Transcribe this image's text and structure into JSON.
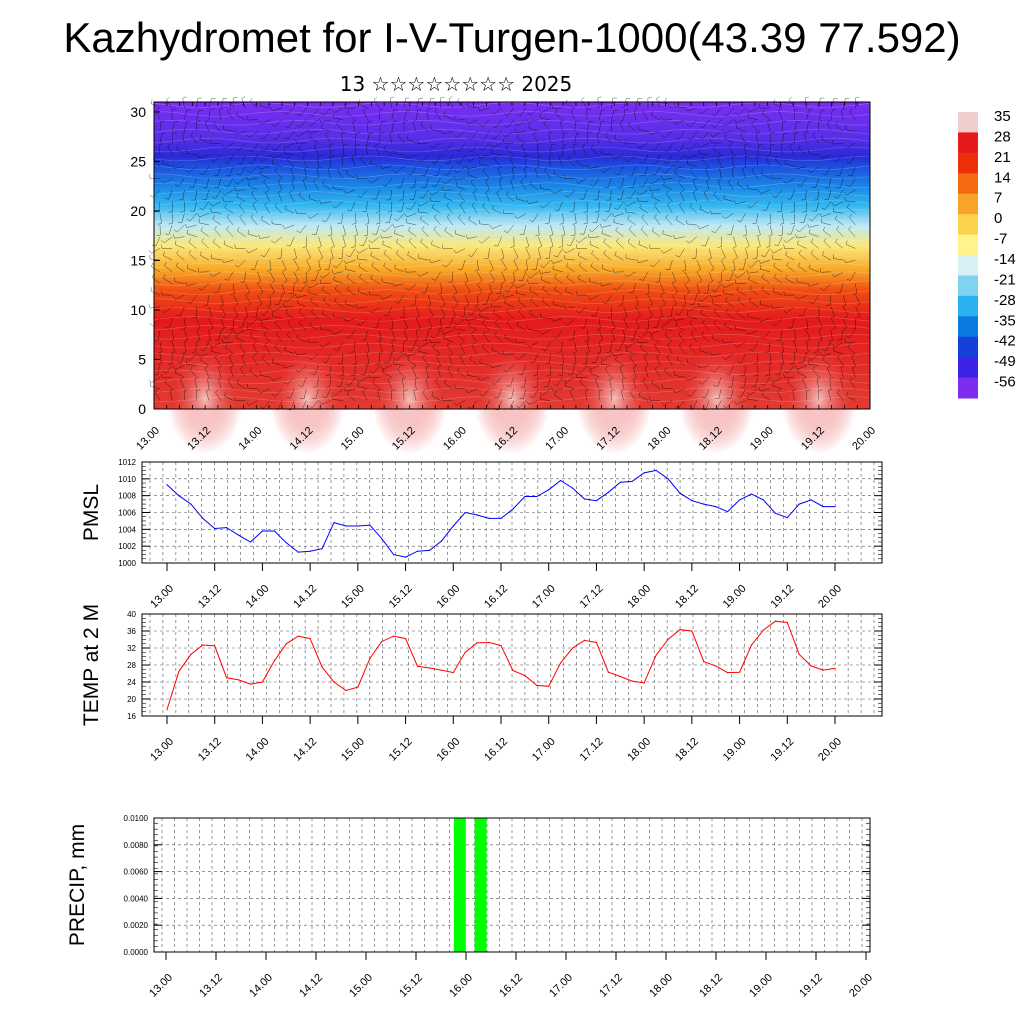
{
  "title": "Kazhydromet for I-V-Turgen-1000(43.39 77.592)",
  "subtitle": "13 ☆☆☆☆☆☆☆☆ 2025",
  "chart_data": [
    {
      "type": "heatmap",
      "name": "temperature-height-section",
      "x_ticks": [
        "13.00",
        "13.12",
        "14.00",
        "14.12",
        "15.00",
        "15.12",
        "16.00",
        "16.12",
        "17.00",
        "17.12",
        "18.00",
        "18.12",
        "19.00",
        "19.12",
        "20.00"
      ],
      "y_ticks": [
        "0",
        "5",
        "10",
        "15",
        "20",
        "25",
        "30"
      ],
      "ylim": [
        0,
        31
      ],
      "colorbar_labels": [
        "35",
        "28",
        "21",
        "14",
        "7",
        "0",
        "-7",
        "-14",
        "-21",
        "-28",
        "-35",
        "-42",
        "-49",
        "-56"
      ],
      "colorbar_colors": [
        "#f2cdcd",
        "#e41a1c",
        "#ee2f0c",
        "#f36a10",
        "#f9a32a",
        "#fbd24a",
        "#fff38c",
        "#d9f0f5",
        "#7fd3f0",
        "#2ab1ef",
        "#0b7ae0",
        "#1640d8",
        "#3b22e5",
        "#7d2df0"
      ],
      "profile": [
        {
          "z": 0,
          "color": "#e23b33"
        },
        {
          "z": 9,
          "color": "#e41a1c"
        },
        {
          "z": 12,
          "color": "#f04e12"
        },
        {
          "z": 14,
          "color": "#f7a726"
        },
        {
          "z": 16.5,
          "color": "#fbe87a"
        },
        {
          "z": 18.5,
          "color": "#bfe8f4"
        },
        {
          "z": 20.5,
          "color": "#34b8f0"
        },
        {
          "z": 22.5,
          "color": "#1a86e6"
        },
        {
          "z": 24.5,
          "color": "#1d4fe0"
        },
        {
          "z": 25.5,
          "color": "#2a2ad6"
        },
        {
          "z": 27.5,
          "color": "#5a2ee8"
        },
        {
          "z": 31,
          "color": "#7a2ef0"
        }
      ]
    },
    {
      "type": "line",
      "name": "pmsl",
      "ylabel": "PMSL",
      "ylim": [
        1000,
        1012
      ],
      "y_ticks": [
        "1000",
        "1002",
        "1004",
        "1006",
        "1008",
        "1010",
        "1012"
      ],
      "x_ticks": [
        "13.00",
        "13.12",
        "14.00",
        "14.12",
        "15.00",
        "15.12",
        "16.00",
        "16.12",
        "17.00",
        "17.12",
        "18.00",
        "18.12",
        "19.00",
        "19.12",
        "20.00"
      ],
      "color": "#0000ff",
      "x": [
        0,
        3,
        6,
        9,
        12,
        15,
        18,
        21,
        24,
        27,
        30,
        33,
        36,
        39,
        42,
        45,
        48,
        51,
        54,
        57,
        60,
        63,
        66,
        69,
        72,
        75,
        78,
        81,
        84,
        87,
        90,
        93,
        96,
        99,
        102,
        105,
        108,
        111,
        114,
        117,
        120,
        123,
        126,
        129,
        132,
        135,
        138,
        141,
        144,
        147,
        150,
        153,
        156,
        159,
        162,
        165,
        168
      ],
      "values": [
        1009.3,
        1008.0,
        1007.0,
        1005.3,
        1004.1,
        1004.2,
        1003.3,
        1002.5,
        1003.8,
        1003.8,
        1002.4,
        1001.3,
        1001.4,
        1001.7,
        1004.8,
        1004.4,
        1004.4,
        1004.5,
        1002.9,
        1001.0,
        1000.7,
        1001.4,
        1001.5,
        1002.6,
        1004.4,
        1006.0,
        1005.7,
        1005.3,
        1005.3,
        1006.4,
        1007.9,
        1007.9,
        1008.7,
        1009.8,
        1008.9,
        1007.6,
        1007.4,
        1008.4,
        1009.6,
        1009.7,
        1010.7,
        1011.0,
        1010.0,
        1008.3,
        1007.4,
        1007.0,
        1006.7,
        1006.1,
        1007.5,
        1008.2,
        1007.5,
        1005.9,
        1005.4,
        1007.0,
        1007.5,
        1006.7,
        1006.7
      ]
    },
    {
      "type": "line",
      "name": "temp-2m",
      "ylabel": "TEMP at 2 M",
      "ylim": [
        16,
        40
      ],
      "y_ticks": [
        "16",
        "20",
        "24",
        "28",
        "32",
        "36",
        "40"
      ],
      "x_ticks": [
        "13.00",
        "13.12",
        "14.00",
        "14.12",
        "15.00",
        "15.12",
        "16.00",
        "16.12",
        "17.00",
        "17.12",
        "18.00",
        "18.12",
        "19.00",
        "19.12",
        "20.00"
      ],
      "color": "#ff0000",
      "x": [
        0,
        3,
        6,
        9,
        12,
        15,
        18,
        21,
        24,
        27,
        30,
        33,
        36,
        39,
        42,
        45,
        48,
        51,
        54,
        57,
        60,
        63,
        66,
        69,
        72,
        75,
        78,
        81,
        84,
        87,
        90,
        93,
        96,
        99,
        102,
        105,
        108,
        111,
        114,
        117,
        120,
        123,
        126,
        129,
        132,
        135,
        138,
        141,
        144,
        147,
        150,
        153,
        156,
        159,
        162,
        165,
        168
      ],
      "values": [
        17.5,
        26.5,
        30.5,
        32.7,
        32.5,
        25.0,
        24.5,
        23.5,
        24.0,
        29.0,
        33.0,
        34.8,
        34.2,
        27.5,
        24.0,
        22.0,
        22.8,
        29.5,
        33.5,
        34.8,
        34.2,
        27.7,
        27.3,
        26.8,
        26.2,
        31.0,
        33.2,
        33.3,
        32.6,
        26.7,
        25.5,
        23.2,
        23.0,
        28.5,
        32.0,
        33.8,
        33.3,
        26.3,
        25.3,
        24.2,
        23.8,
        30.3,
        34.0,
        36.3,
        36.0,
        28.8,
        27.8,
        26.2,
        26.3,
        32.7,
        36.2,
        38.3,
        38.0,
        30.5,
        27.8,
        26.8,
        27.2
      ]
    },
    {
      "type": "bar",
      "name": "precip",
      "ylabel": "PRECIP, mm",
      "ylim": [
        0,
        0.01
      ],
      "y_ticks": [
        "0.0000",
        "0.0020",
        "0.0040",
        "0.0060",
        "0.0080",
        "0.0100"
      ],
      "x_ticks": [
        "13.00",
        "13.12",
        "14.00",
        "14.12",
        "15.00",
        "15.12",
        "16.00",
        "16.12",
        "17.00",
        "17.12",
        "18.00",
        "18.12",
        "19.00",
        "19.12",
        "20.00"
      ],
      "color": "#00ff00",
      "bars": [
        {
          "x": 70.5,
          "value": 0.01
        },
        {
          "x": 75.5,
          "value": 0.01
        }
      ]
    }
  ]
}
